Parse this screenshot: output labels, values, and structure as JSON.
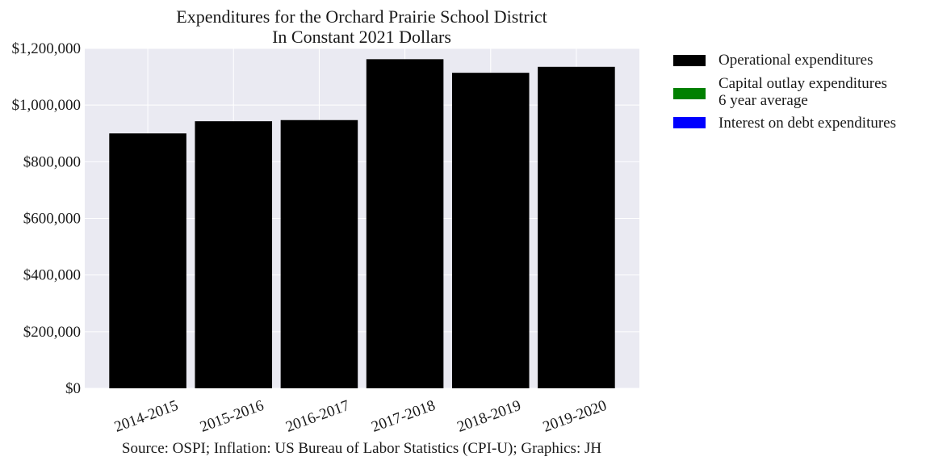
{
  "chart_data": {
    "type": "bar",
    "title": "Expenditures for the Orchard Prairie School District",
    "subtitle": "In Constant 2021 Dollars",
    "categories": [
      "2014-2015",
      "2015-2016",
      "2016-2017",
      "2017-2018",
      "2018-2019",
      "2019-2020"
    ],
    "series": [
      {
        "name": "Operational expenditures",
        "color": "#000000",
        "values": [
          900000,
          943000,
          947000,
          1162000,
          1114000,
          1135000
        ]
      },
      {
        "name": "Capital outlay expenditures",
        "name_line2": "6 year average",
        "color": "#008000",
        "values": [
          0,
          0,
          0,
          0,
          0,
          0
        ]
      },
      {
        "name": "Interest on debt expenditures",
        "color": "#0000ff",
        "values": [
          0,
          0,
          0,
          0,
          0,
          0
        ]
      }
    ],
    "y_ticks": [
      "$0",
      "$200,000",
      "$400,000",
      "$600,000",
      "$800,000",
      "$1,000,000",
      "$1,200,000"
    ],
    "ylim": [
      0,
      1200000
    ],
    "grid": true,
    "legend_position": "outside-right",
    "xlabel": "",
    "ylabel": "",
    "source": "Source: OSPI; Inflation: US Bureau of Labor Statistics (CPI-U); Graphics: JH",
    "colors": {
      "plot_background": "#eaeaf2",
      "grid": "#ffffff"
    }
  }
}
